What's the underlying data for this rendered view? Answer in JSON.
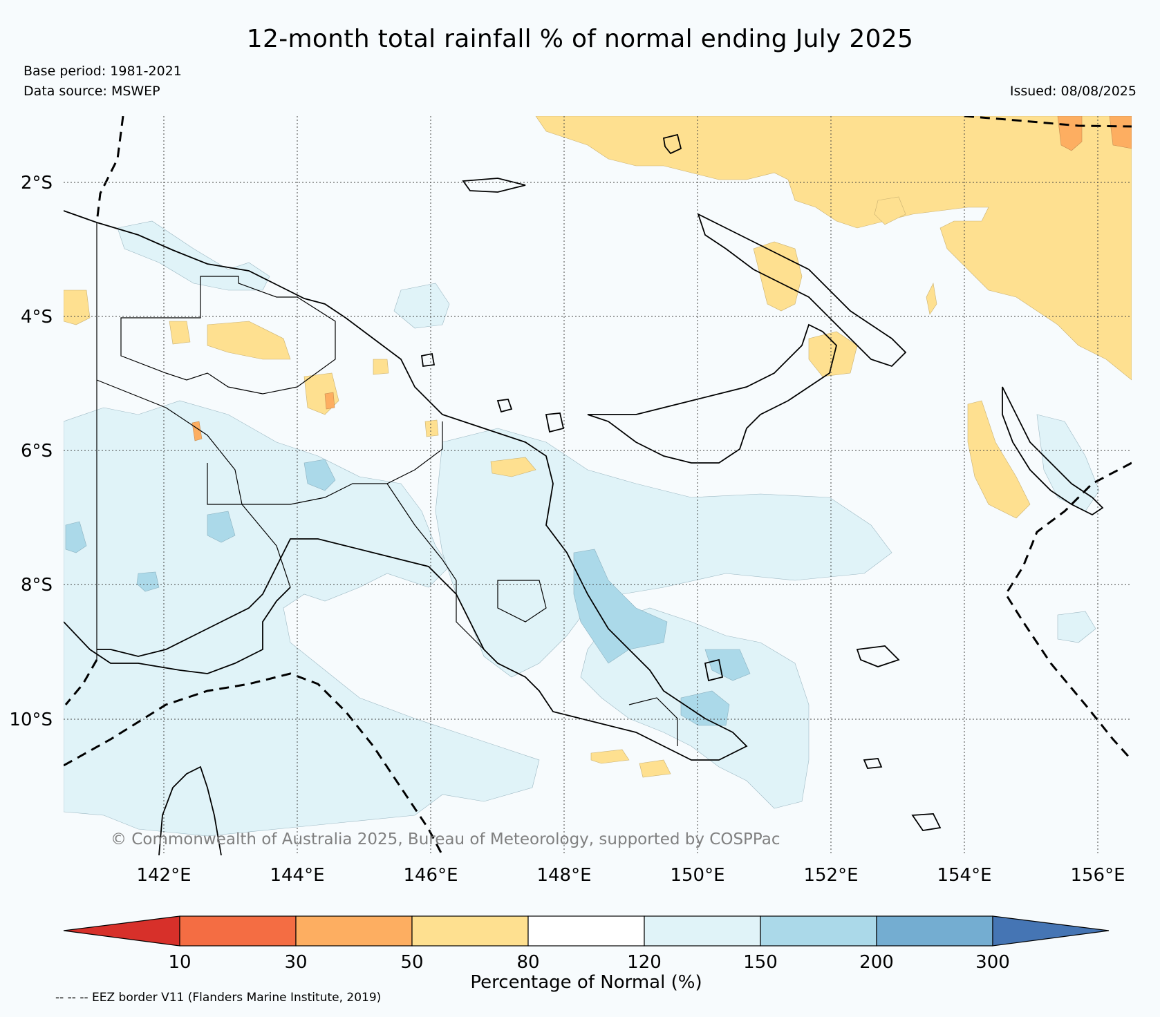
{
  "header": {
    "title": "12-month total rainfall % of normal ending July 2025",
    "base_period": "Base period: 1981-2021",
    "data_source": "Data source: MSWEP",
    "issued": "Issued: 08/08/2025"
  },
  "map": {
    "lat_labels": [
      "2°S",
      "4°S",
      "6°S",
      "8°S",
      "10°S"
    ],
    "lon_labels": [
      "142°E",
      "144°E",
      "146°E",
      "148°E",
      "150°E",
      "152°E",
      "154°E",
      "156°E"
    ],
    "copyright": "© Commonwealth of Australia 2025, Bureau of Meteorology, supported by COSPPac"
  },
  "colorbar": {
    "title": "Percentage of Normal (%)",
    "ticks": [
      "10",
      "30",
      "50",
      "80",
      "120",
      "150",
      "200",
      "300"
    ],
    "colors": [
      "#d7302a",
      "#f46d43",
      "#fdae61",
      "#fee090",
      "#ffffff",
      "#e0f3f8",
      "#abd9e9",
      "#74add1",
      "#4575b4"
    ]
  },
  "footer": {
    "eez_note": "-- -- -- EEZ border V11 (Flanders Marine Institute, 2019)"
  },
  "colors": {
    "background": "#f7fbfd",
    "below_normal": "#fee090",
    "above_normal": "#e0f3f8",
    "well_above": "#abd9e9"
  }
}
